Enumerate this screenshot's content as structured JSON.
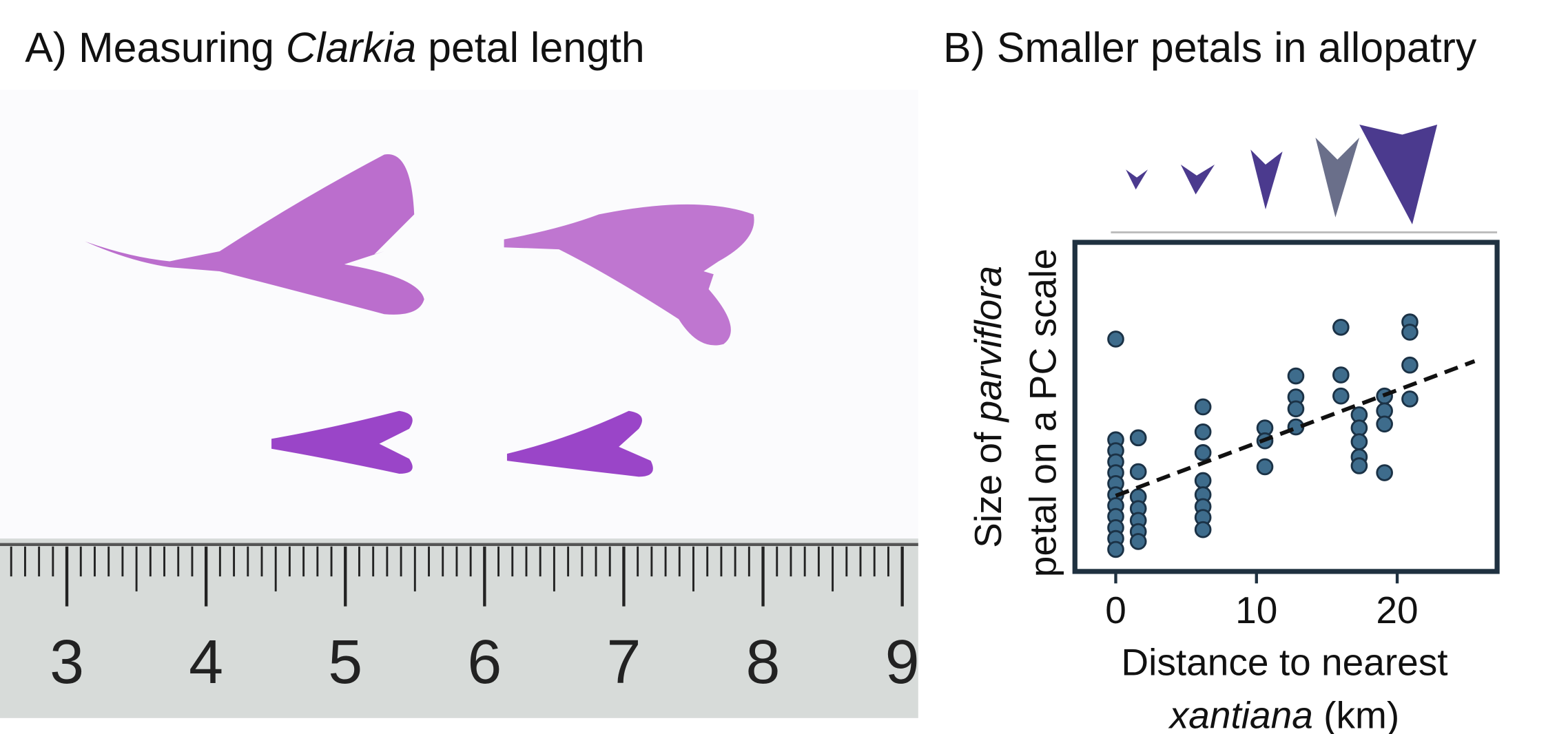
{
  "panel_a": {
    "title_start": "A) Measuring ",
    "title_italic": "Clarkia",
    "title_end": " petal length",
    "ruler_labels": [
      3,
      4,
      5,
      6,
      7,
      8,
      9
    ]
  },
  "chart_data": {
    "type": "scatter",
    "title": "B) Smaller petals in allopatry",
    "xlabel_line1": "Distance to nearest",
    "xlabel_italic": "xantiana",
    "xlabel_end": " (km)",
    "ylabel_start": "Size of ",
    "ylabel_italic": "parviflora",
    "ylabel_line2": "petal on a PC scale",
    "xlim": [
      -2.9,
      27.1
    ],
    "xticks": [
      0,
      10,
      20
    ],
    "ylim": [
      0,
      10
    ],
    "series": [
      {
        "color": "#3e6c8c",
        "x": [
          0,
          0,
          0,
          0,
          0,
          0,
          0,
          0,
          0,
          0,
          0,
          0,
          1.6,
          1.6,
          1.6,
          1.6,
          1.6,
          1.6,
          1.6,
          6.2,
          6.2,
          6.2,
          6.2,
          6.2,
          6.2,
          6.2,
          6.2,
          10.6,
          10.6,
          10.6,
          12.8,
          12.8,
          12.8,
          12.8,
          16.0,
          16.0,
          16.0,
          17.3,
          17.3,
          17.3,
          17.3,
          17.3,
          19.1,
          19.1,
          19.1,
          19.1,
          20.9,
          20.9,
          20.9,
          20.9
        ],
        "values": [
          7.06,
          4.0,
          3.67,
          3.33,
          3.0,
          2.67,
          2.33,
          2.0,
          1.67,
          1.33,
          1.0,
          0.67,
          4.06,
          3.03,
          2.27,
          1.91,
          1.55,
          1.21,
          0.91,
          5.0,
          4.24,
          3.61,
          2.76,
          2.33,
          1.97,
          1.64,
          1.27,
          4.36,
          3.97,
          3.18,
          5.94,
          5.3,
          4.94,
          4.39,
          7.42,
          5.97,
          5.33,
          4.76,
          4.36,
          3.94,
          3.48,
          3.21,
          5.33,
          4.88,
          4.48,
          3.0,
          7.58,
          7.27,
          6.27,
          5.24
        ]
      }
    ],
    "trend": {
      "x": [
        0,
        25.5
      ],
      "values": [
        2.3,
        6.39
      ]
    }
  }
}
